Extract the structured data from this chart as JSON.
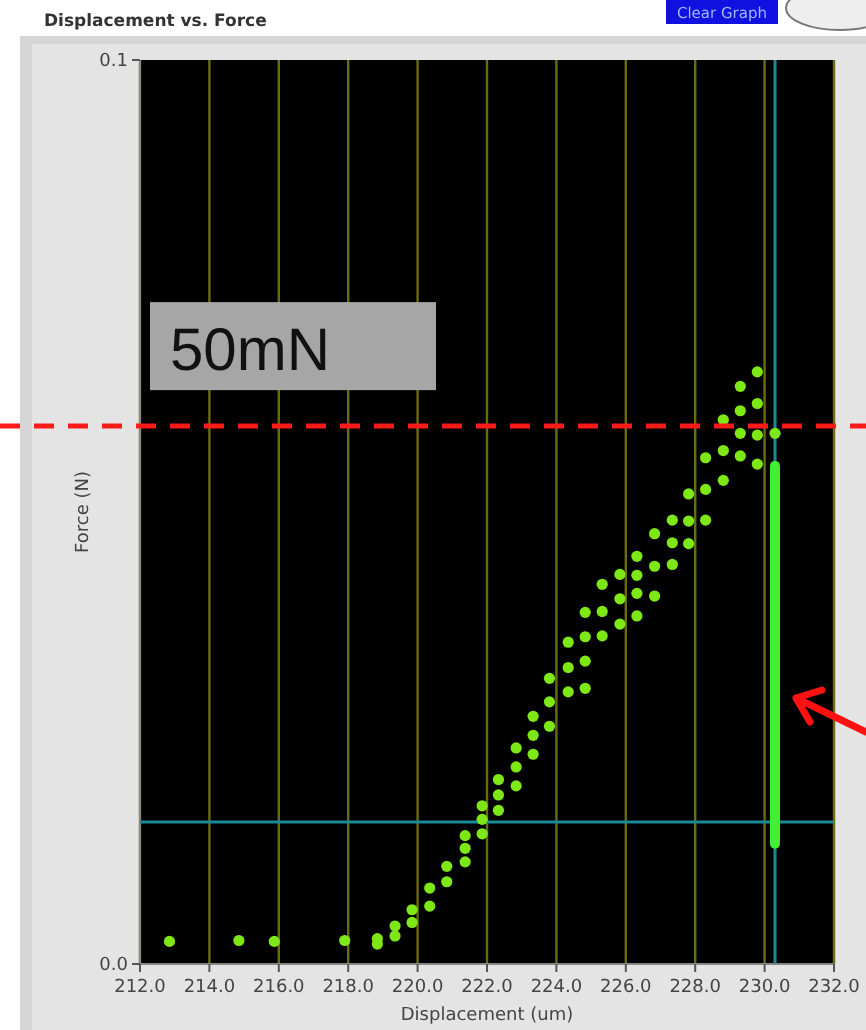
{
  "chart_data": {
    "type": "scatter",
    "title": "Displacement vs. Force",
    "xlabel": "Displacement (um)",
    "ylabel": "Force (N)",
    "annotations": [
      "Clear Graph"
    ],
    "xlim": [
      212,
      232
    ],
    "ylim": [
      0,
      0.1
    ],
    "xticks": [
      {
        "value": 212,
        "label": "212.0"
      },
      {
        "value": 214,
        "label": "214.0"
      },
      {
        "value": 216,
        "label": "216.0"
      },
      {
        "value": 218,
        "label": "218.0"
      },
      {
        "value": 220,
        "label": "220.0"
      },
      {
        "value": 222,
        "label": "222.0"
      },
      {
        "value": 224,
        "label": "224.0"
      },
      {
        "value": 226,
        "label": "226.0"
      },
      {
        "value": 228,
        "label": "228.0"
      },
      {
        "value": 230,
        "label": "230.0"
      },
      {
        "value": 232,
        "label": "232.0"
      }
    ],
    "yticks": [
      {
        "value": 0,
        "label": "0.0"
      },
      {
        "value": 0.1,
        "label": "0.1"
      }
    ],
    "grid": "x",
    "series": [
      {
        "color": "#7ee817",
        "marker": "circle",
        "x": [
          212.85,
          214.85,
          215.87,
          217.9,
          218.84,
          218.84,
          219.35,
          219.35,
          219.84,
          219.84,
          220.35,
          220.35,
          220.84,
          220.84,
          221.37,
          221.37,
          221.37,
          221.86,
          221.86,
          221.86,
          222.33,
          222.33,
          222.33,
          222.84,
          222.84,
          222.84,
          223.33,
          223.33,
          223.33,
          223.8,
          223.8,
          223.8,
          224.34,
          224.34,
          224.34,
          224.83,
          224.83,
          224.83,
          224.83,
          225.32,
          225.32,
          225.32,
          225.83,
          225.83,
          225.83,
          226.32,
          226.32,
          226.32,
          226.32,
          226.83,
          226.83,
          226.83,
          227.34,
          227.34,
          227.34,
          227.81,
          227.81,
          227.81,
          228.3,
          228.3,
          228.3,
          228.81,
          228.81,
          228.81,
          229.3,
          229.3,
          229.3,
          229.3,
          229.79,
          229.79,
          229.79,
          229.79,
          230.3
        ],
        "values": [
          0.0025,
          0.0026,
          0.0025,
          0.0026,
          0.0022,
          0.0028,
          0.0031,
          0.0042,
          0.0046,
          0.006,
          0.0064,
          0.0084,
          0.0091,
          0.0108,
          0.0113,
          0.0128,
          0.0142,
          0.0144,
          0.016,
          0.0175,
          0.017,
          0.0187,
          0.0204,
          0.0197,
          0.0218,
          0.0239,
          0.0232,
          0.0253,
          0.0274,
          0.0263,
          0.029,
          0.0316,
          0.0301,
          0.0328,
          0.0356,
          0.0305,
          0.0335,
          0.0362,
          0.0389,
          0.0363,
          0.039,
          0.042,
          0.0376,
          0.0404,
          0.0431,
          0.0385,
          0.041,
          0.043,
          0.0451,
          0.0407,
          0.044,
          0.0476,
          0.0442,
          0.0466,
          0.0491,
          0.0465,
          0.049,
          0.052,
          0.0491,
          0.0525,
          0.056,
          0.0535,
          0.0568,
          0.0602,
          0.0562,
          0.0587,
          0.0612,
          0.0639,
          0.0553,
          0.0585,
          0.062,
          0.0655,
          0.0587
        ]
      },
      {
        "type": "line",
        "color": "#44ee33",
        "x": [
          230.3,
          230.3
        ],
        "values": [
          0.0551,
          0.0133
        ]
      }
    ],
    "ref_lines": [
      {
        "axis": "y",
        "value": 0.0595,
        "label": "50mN",
        "color": "#ff1a1a",
        "line_style": "dashed"
      },
      {
        "axis": "y",
        "value": 0.0157,
        "color": "#1a8a99",
        "line_style": "solid"
      },
      {
        "axis": "x",
        "value": 230.3,
        "color": "#1a8a99",
        "line_style": "solid"
      }
    ]
  }
}
